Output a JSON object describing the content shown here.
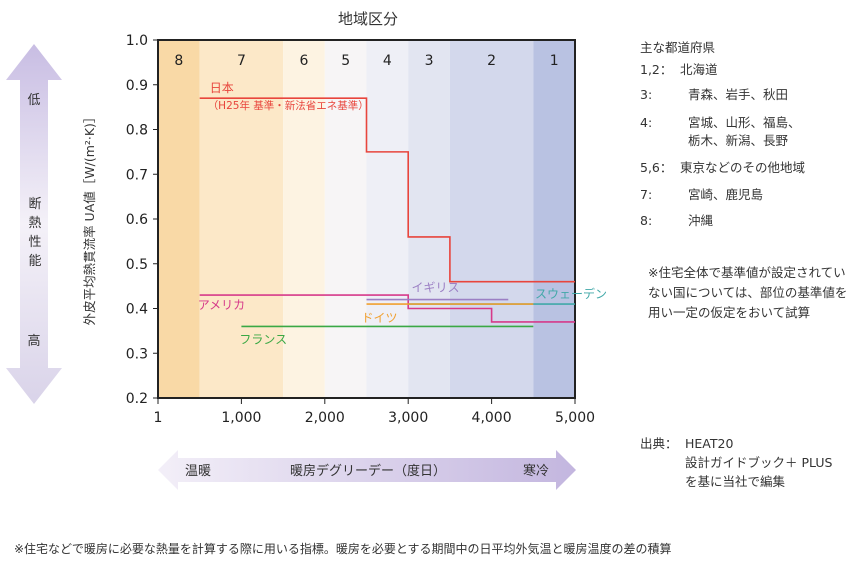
{
  "chart_data": {
    "type": "line",
    "title": "地域区分",
    "xlabel": "暖房デグリーデー（度日）",
    "ylabel": "外皮平均熱貫流率 UA値［W/(m²·K)］",
    "x_ticks": [
      "1",
      "1,000",
      "2,000",
      "3,000",
      "4,000",
      "5,000"
    ],
    "y_ticks": [
      "1.0",
      "0.9",
      "0.8",
      "0.7",
      "0.6",
      "0.5",
      "0.4",
      "0.3",
      "0.2"
    ],
    "xlim": [
      0,
      5000
    ],
    "ylim": [
      0.2,
      1.0
    ],
    "grid": false,
    "zones": [
      {
        "label": "8",
        "x0": 0,
        "x1": 500,
        "color": "#f9d9a6"
      },
      {
        "label": "7",
        "x0": 500,
        "x1": 1500,
        "color": "#fce8c8"
      },
      {
        "label": "6",
        "x0": 1500,
        "x1": 2000,
        "color": "#fdf3e2"
      },
      {
        "label": "5",
        "x0": 2000,
        "x1": 2500,
        "color": "#f7f5f6"
      },
      {
        "label": "4",
        "x0": 2500,
        "x1": 3000,
        "color": "#eeeff6"
      },
      {
        "label": "3",
        "x0": 3000,
        "x1": 3500,
        "color": "#e2e5f1"
      },
      {
        "label": "2",
        "x0": 3500,
        "x1": 4500,
        "color": "#d3d8ec"
      },
      {
        "label": "1",
        "x0": 4500,
        "x1": 5000,
        "color": "#b9c2e2"
      }
    ],
    "series": [
      {
        "name": "日本",
        "sublabel": "（H25年 基準・新法省エネ基準）",
        "color": "#e8453c",
        "x": [
          500,
          2500,
          2500,
          3000,
          3000,
          3500,
          3500,
          5000
        ],
        "y": [
          0.87,
          0.87,
          0.75,
          0.75,
          0.56,
          0.56,
          0.46,
          0.46
        ]
      },
      {
        "name": "アメリカ",
        "color": "#d63a8a",
        "x": [
          500,
          3000,
          3000,
          4000,
          4000,
          5000
        ],
        "y": [
          0.43,
          0.43,
          0.4,
          0.4,
          0.37,
          0.37
        ]
      },
      {
        "name": "イギリス",
        "color": "#9b7fc4",
        "x": [
          2500,
          4200
        ],
        "y": [
          0.42,
          0.42
        ]
      },
      {
        "name": "スウェーデン",
        "color": "#41a8a8",
        "x": [
          3000,
          5000
        ],
        "y": [
          0.41,
          0.41
        ]
      },
      {
        "name": "ドイツ",
        "color": "#f0a030",
        "x": [
          2500,
          4500
        ],
        "y": [
          0.41,
          0.41
        ]
      },
      {
        "name": "フランス",
        "color": "#3aa845",
        "x": [
          1000,
          4500
        ],
        "y": [
          0.36,
          0.36
        ]
      }
    ]
  },
  "side_arrow": {
    "top": "低",
    "middle": "断熱性能",
    "bottom": "高"
  },
  "bottom_arrow": {
    "left": "温暖",
    "center": "暖房デグリーデー（度日）",
    "right": "寒冷"
  },
  "legend": {
    "title": "主な都道府県",
    "rows": [
      {
        "key": "1,2：",
        "value": "北海道"
      },
      {
        "key": "3:",
        "value": "青森、岩手、秋田"
      },
      {
        "key": "4:",
        "value": "宮城、山形、福島、\n栃木、新潟、長野"
      },
      {
        "key": "5,6：",
        "value": "東京などのその他地域"
      },
      {
        "key": "7:",
        "value": "宮崎、鹿児島"
      },
      {
        "key": "8:",
        "value": "沖縄"
      }
    ]
  },
  "note": "※住宅全体で基準値が設定されていない国については、部位の基準値を用い一定の仮定をおいて試算",
  "source": {
    "key": "出典：",
    "value": "HEAT20\n設計ガイドブック＋ PLUS\nを基に当社で編集"
  },
  "footer": "※住宅などで暖房に必要な熱量を計算する際に用いる指標。暖房を必要とする期間中の日平均外気温と暖房温度の差の積算"
}
